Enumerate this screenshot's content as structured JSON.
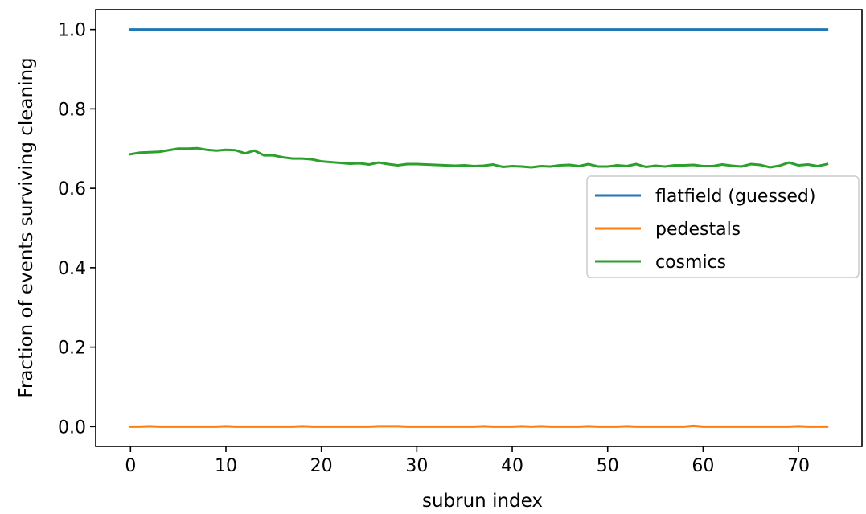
{
  "chart_data": {
    "type": "line",
    "xlabel": "subrun index",
    "ylabel": "Fraction of events surviving cleaning",
    "xlim": [
      -3.65,
      76.65
    ],
    "ylim": [
      -0.05,
      1.05
    ],
    "xticks": [
      0,
      10,
      20,
      30,
      40,
      50,
      60,
      70
    ],
    "xtick_labels": [
      "0",
      "10",
      "20",
      "30",
      "40",
      "50",
      "60",
      "70"
    ],
    "yticks": [
      0.0,
      0.2,
      0.4,
      0.6,
      0.8,
      1.0
    ],
    "ytick_labels": [
      "0.0",
      "0.2",
      "0.4",
      "0.6",
      "0.8",
      "1.0"
    ],
    "grid": false,
    "legend_position": "center-right",
    "x": [
      0,
      1,
      2,
      3,
      4,
      5,
      6,
      7,
      8,
      9,
      10,
      11,
      12,
      13,
      14,
      15,
      16,
      17,
      18,
      19,
      20,
      21,
      22,
      23,
      24,
      25,
      26,
      27,
      28,
      29,
      30,
      31,
      32,
      33,
      34,
      35,
      36,
      37,
      38,
      39,
      40,
      41,
      42,
      43,
      44,
      45,
      46,
      47,
      48,
      49,
      50,
      51,
      52,
      53,
      54,
      55,
      56,
      57,
      58,
      59,
      60,
      61,
      62,
      63,
      64,
      65,
      66,
      67,
      68,
      69,
      70,
      71,
      72,
      73
    ],
    "series": [
      {
        "name": "flatfield (guessed)",
        "color": "#1f77b4",
        "values": [
          1.0,
          1.0,
          1.0,
          1.0,
          1.0,
          1.0,
          1.0,
          1.0,
          1.0,
          1.0,
          1.0,
          1.0,
          1.0,
          1.0,
          1.0,
          1.0,
          1.0,
          1.0,
          1.0,
          1.0,
          1.0,
          1.0,
          1.0,
          1.0,
          1.0,
          1.0,
          1.0,
          1.0,
          1.0,
          1.0,
          1.0,
          1.0,
          1.0,
          1.0,
          1.0,
          1.0,
          1.0,
          1.0,
          1.0,
          1.0,
          1.0,
          1.0,
          1.0,
          1.0,
          1.0,
          1.0,
          1.0,
          1.0,
          1.0,
          1.0,
          1.0,
          1.0,
          1.0,
          1.0,
          1.0,
          1.0,
          1.0,
          1.0,
          1.0,
          1.0,
          1.0,
          1.0,
          1.0,
          1.0,
          1.0,
          1.0,
          1.0,
          1.0,
          1.0,
          1.0,
          1.0,
          1.0,
          1.0,
          1.0
        ]
      },
      {
        "name": "pedestals",
        "color": "#ff7f0e",
        "values": [
          0.0,
          0.0,
          0.001,
          0.0,
          0.0,
          0.0,
          0.0,
          0.0,
          0.0,
          0.0,
          0.001,
          0.0,
          0.0,
          0.0,
          0.0,
          0.0,
          0.0,
          0.0,
          0.001,
          0.0,
          0.0,
          0.0,
          0.0,
          0.0,
          0.0,
          0.0,
          0.001,
          0.001,
          0.001,
          0.0,
          0.0,
          0.0,
          0.0,
          0.0,
          0.0,
          0.0,
          0.0,
          0.001,
          0.0,
          0.0,
          0.0,
          0.001,
          0.0,
          0.001,
          0.0,
          0.0,
          0.0,
          0.0,
          0.001,
          0.0,
          0.0,
          0.0,
          0.001,
          0.0,
          0.0,
          0.0,
          0.0,
          0.0,
          0.0,
          0.002,
          0.0,
          0.0,
          0.0,
          0.0,
          0.0,
          0.0,
          0.0,
          0.0,
          0.0,
          0.0,
          0.001,
          0.0,
          0.0,
          0.0
        ]
      },
      {
        "name": "cosmics",
        "color": "#2ca02c",
        "values": [
          0.686,
          0.69,
          0.691,
          0.692,
          0.696,
          0.7,
          0.7,
          0.701,
          0.697,
          0.695,
          0.697,
          0.696,
          0.688,
          0.695,
          0.683,
          0.683,
          0.678,
          0.675,
          0.675,
          0.673,
          0.668,
          0.666,
          0.664,
          0.662,
          0.663,
          0.66,
          0.665,
          0.661,
          0.658,
          0.661,
          0.661,
          0.66,
          0.659,
          0.658,
          0.657,
          0.658,
          0.656,
          0.657,
          0.66,
          0.654,
          0.656,
          0.655,
          0.653,
          0.656,
          0.655,
          0.658,
          0.659,
          0.656,
          0.661,
          0.655,
          0.655,
          0.658,
          0.656,
          0.661,
          0.654,
          0.657,
          0.655,
          0.658,
          0.658,
          0.659,
          0.656,
          0.656,
          0.66,
          0.657,
          0.655,
          0.661,
          0.659,
          0.653,
          0.657,
          0.665,
          0.658,
          0.66,
          0.656,
          0.661
        ]
      }
    ]
  }
}
